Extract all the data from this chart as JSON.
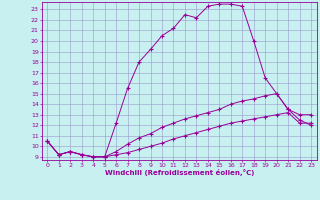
{
  "title": "",
  "xlabel": "Windchill (Refroidissement éolien,°C)",
  "bg_color": "#c8f0f0",
  "line_color": "#990099",
  "grid_color": "#9999cc",
  "xlim": [
    -0.5,
    23.5
  ],
  "ylim": [
    8.7,
    23.7
  ],
  "xticks": [
    0,
    1,
    2,
    3,
    4,
    5,
    6,
    7,
    8,
    9,
    10,
    11,
    12,
    13,
    14,
    15,
    16,
    17,
    18,
    19,
    20,
    21,
    22,
    23
  ],
  "yticks": [
    9,
    10,
    11,
    12,
    13,
    14,
    15,
    16,
    17,
    18,
    19,
    20,
    21,
    22,
    23
  ],
  "line1_x": [
    0,
    1,
    2,
    3,
    4,
    5,
    6,
    7,
    8,
    9,
    10,
    11,
    12,
    13,
    14,
    15,
    16,
    17,
    18,
    19,
    20,
    21,
    22,
    23
  ],
  "line1_y": [
    10.5,
    9.2,
    9.5,
    9.2,
    9.0,
    9.0,
    12.2,
    15.5,
    18.0,
    19.2,
    20.5,
    21.2,
    22.5,
    22.2,
    23.3,
    23.5,
    23.5,
    23.3,
    20.0,
    16.5,
    15.0,
    13.5,
    12.5,
    12.0
  ],
  "line2_x": [
    0,
    1,
    2,
    3,
    4,
    5,
    6,
    7,
    8,
    9,
    10,
    11,
    12,
    13,
    14,
    15,
    16,
    17,
    18,
    19,
    20,
    21,
    22,
    23
  ],
  "line2_y": [
    10.5,
    9.2,
    9.5,
    9.2,
    9.0,
    9.0,
    9.5,
    10.2,
    10.8,
    11.2,
    11.8,
    12.2,
    12.6,
    12.9,
    13.2,
    13.5,
    14.0,
    14.3,
    14.5,
    14.8,
    15.0,
    13.5,
    13.0,
    13.0
  ],
  "line3_x": [
    0,
    1,
    2,
    3,
    4,
    5,
    6,
    7,
    8,
    9,
    10,
    11,
    12,
    13,
    14,
    15,
    16,
    17,
    18,
    19,
    20,
    21,
    22,
    23
  ],
  "line3_y": [
    10.5,
    9.2,
    9.5,
    9.2,
    9.0,
    9.0,
    9.2,
    9.4,
    9.7,
    10.0,
    10.3,
    10.7,
    11.0,
    11.3,
    11.6,
    11.9,
    12.2,
    12.4,
    12.6,
    12.8,
    13.0,
    13.2,
    12.2,
    12.2
  ]
}
